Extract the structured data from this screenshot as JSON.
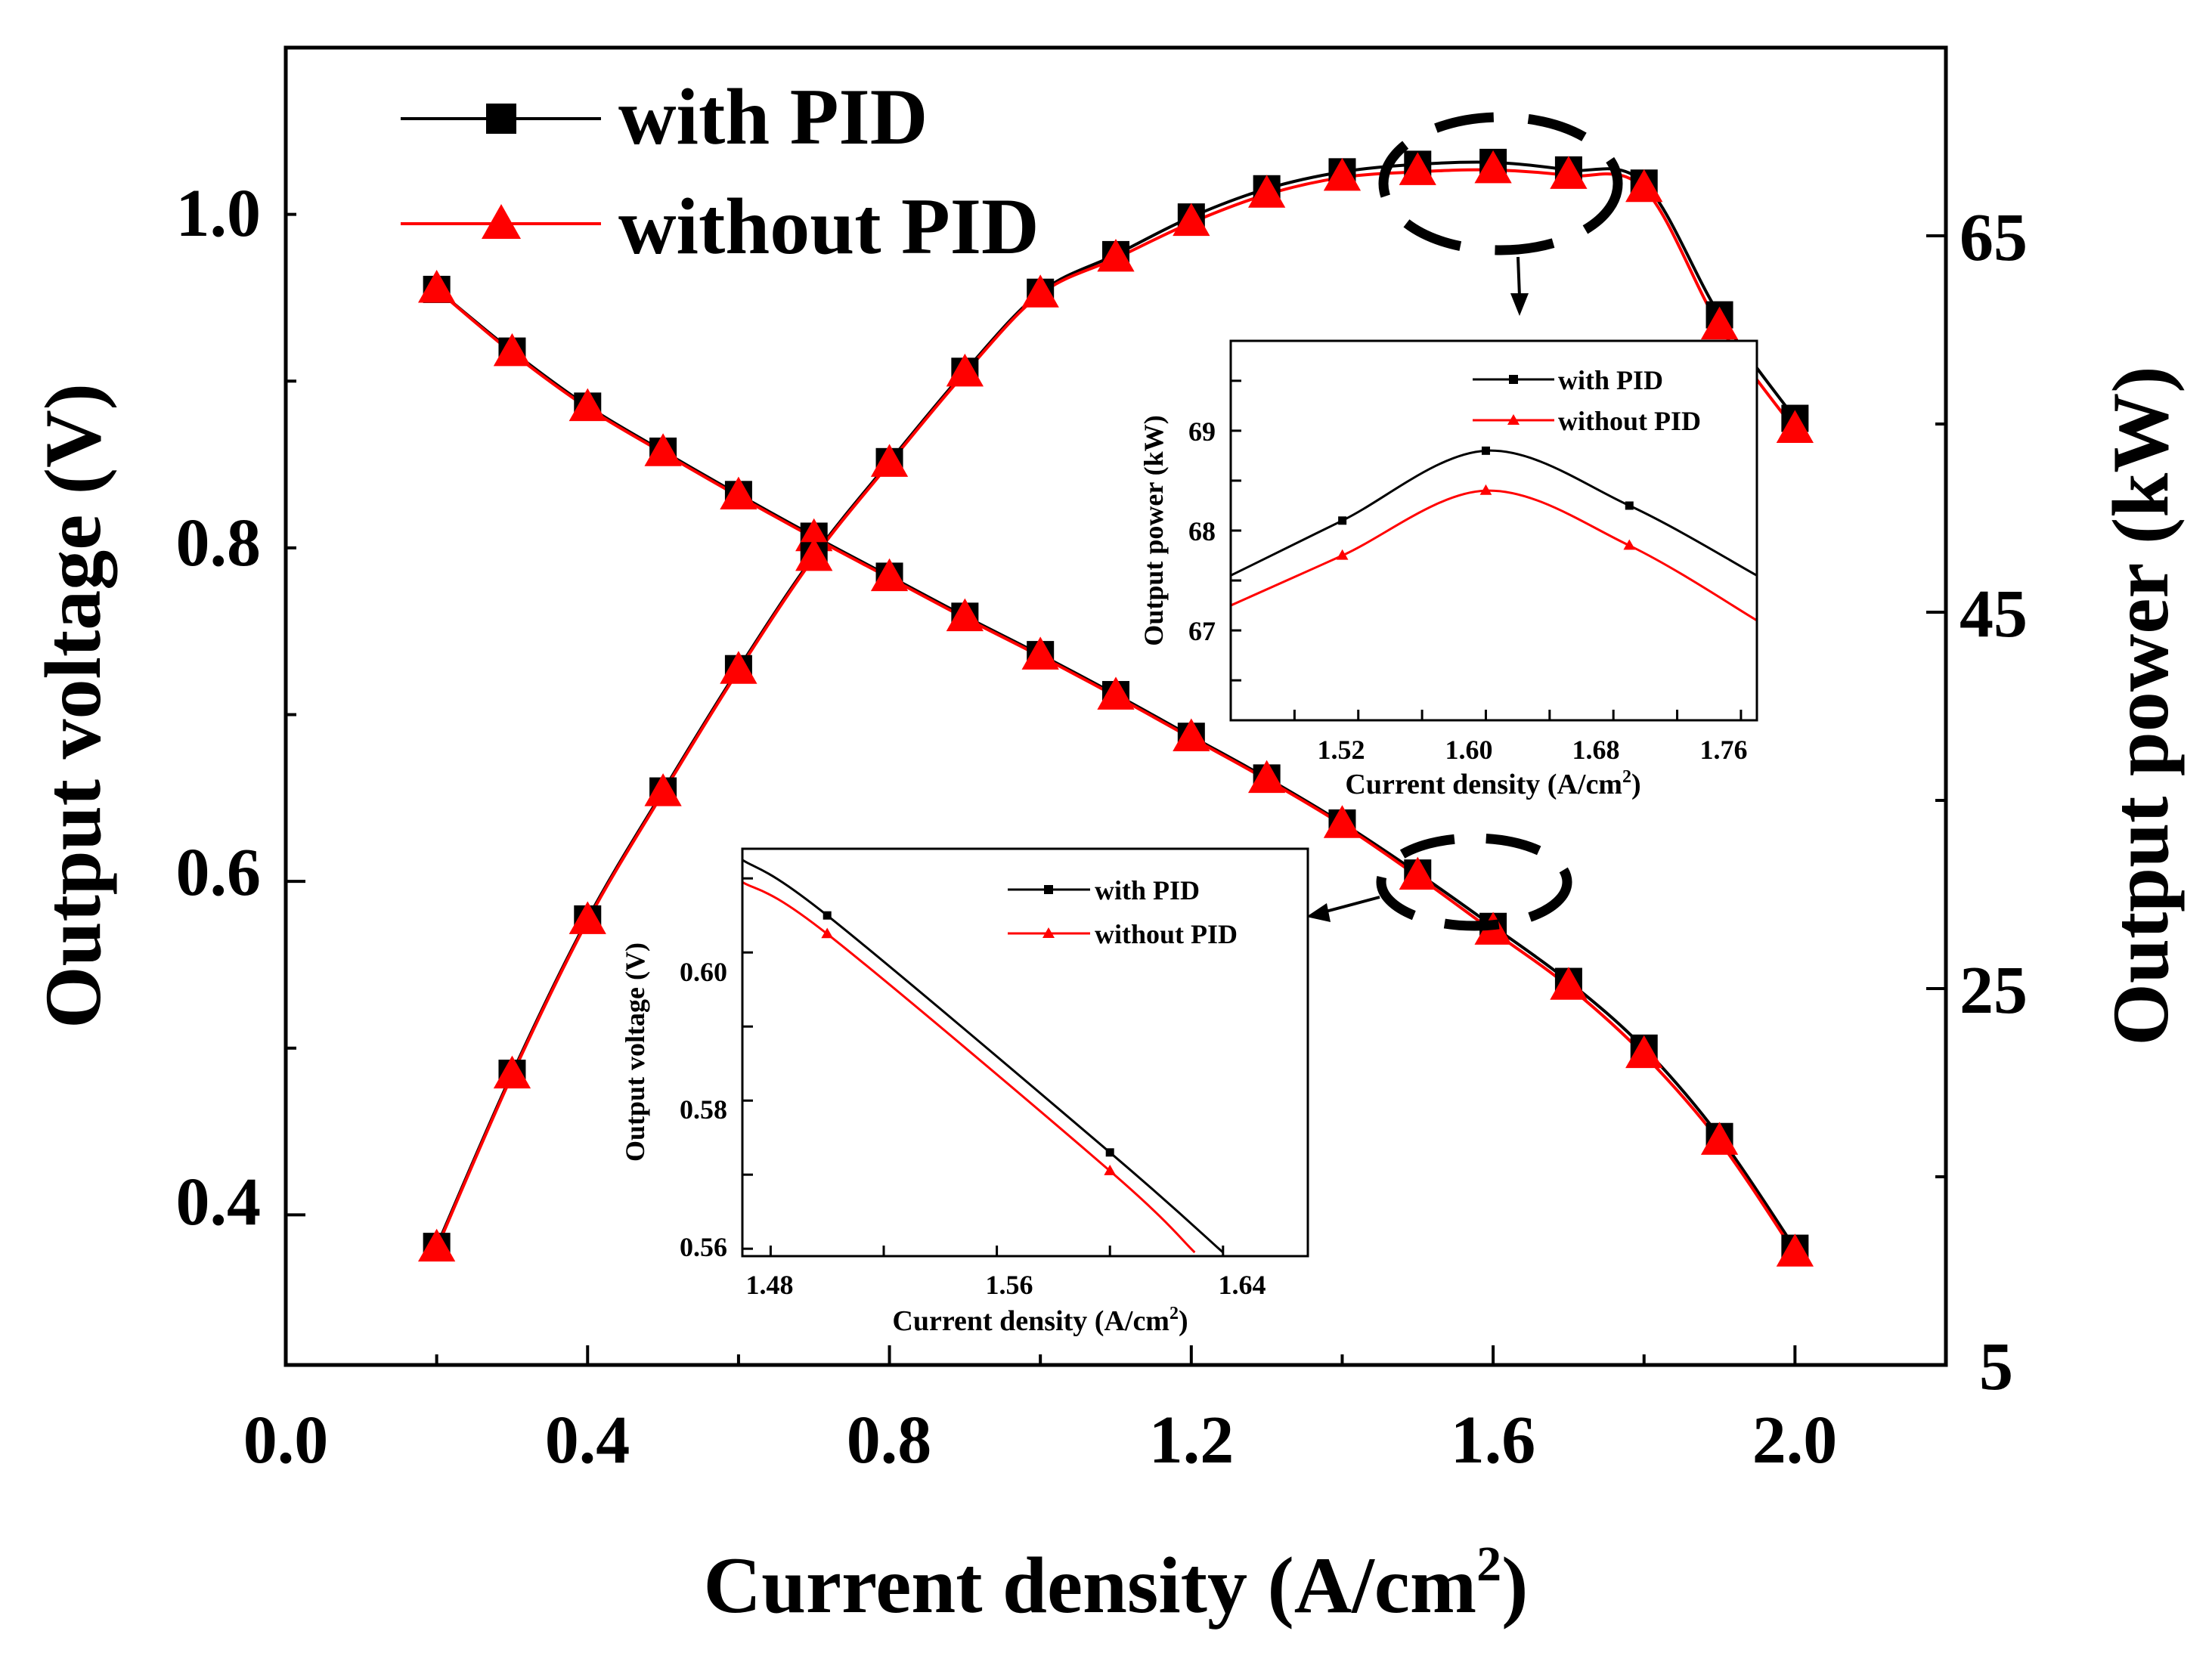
{
  "chart_data": [
    {
      "id": "main",
      "type": "line",
      "xlabel": "Current density (A/cm",
      "xlabel_sup": "2",
      "xlabel_end": ")",
      "ylabel_left": "Output voltage (V)",
      "ylabel_right": "Output power (kW)",
      "xlim": [
        0.0,
        2.2
      ],
      "ylim_left": [
        0.31,
        1.1
      ],
      "ylim_right": [
        5,
        75
      ],
      "xticks": [
        "0.0",
        "0.4",
        "0.8",
        "1.2",
        "1.6",
        "2.0"
      ],
      "yticks_left": [
        "0.4",
        "0.6",
        "0.8",
        "1.0"
      ],
      "yticks_right": [
        "5",
        "25",
        "45",
        "65"
      ],
      "legend": [
        {
          "name": "with PID",
          "color": "#000000",
          "marker": "square"
        },
        {
          "name": "without PID",
          "color": "#ff0000",
          "marker": "triangle"
        }
      ],
      "x": [
        0.2,
        0.3,
        0.4,
        0.5,
        0.6,
        0.7,
        0.8,
        0.9,
        1.0,
        1.1,
        1.2,
        1.3,
        1.4,
        1.5,
        1.6,
        1.7,
        1.8,
        1.9,
        2.0
      ],
      "series": [
        {
          "name": "with PID voltage",
          "axis": "left",
          "color": "#000000",
          "marker": "square",
          "values": [
            0.955,
            0.918,
            0.885,
            0.858,
            0.832,
            0.807,
            0.783,
            0.759,
            0.736,
            0.712,
            0.687,
            0.662,
            0.635,
            0.605,
            0.573,
            0.54,
            0.5,
            0.447,
            0.38
          ]
        },
        {
          "name": "without PID voltage",
          "axis": "left",
          "color": "#ff0000",
          "marker": "triangle",
          "values": [
            0.955,
            0.917,
            0.884,
            0.857,
            0.831,
            0.806,
            0.782,
            0.758,
            0.735,
            0.711,
            0.686,
            0.661,
            0.634,
            0.603,
            0.57,
            0.537,
            0.496,
            0.444,
            0.377
          ]
        },
        {
          "name": "with PID power",
          "axis": "right",
          "color": "#000000",
          "marker": "square",
          "values": [
            11.3,
            20.5,
            28.7,
            35.5,
            42.0,
            48.0,
            53.0,
            57.8,
            62.0,
            64.0,
            66.0,
            67.5,
            68.4,
            68.8,
            68.9,
            68.5,
            67.8,
            60.8,
            55.3
          ]
        },
        {
          "name": "without PID power",
          "axis": "right",
          "color": "#ff0000",
          "marker": "triangle",
          "values": [
            11.2,
            20.4,
            28.6,
            35.4,
            41.9,
            47.9,
            52.9,
            57.7,
            61.9,
            63.8,
            65.7,
            67.2,
            68.1,
            68.4,
            68.5,
            68.2,
            67.5,
            60.2,
            54.7
          ]
        }
      ]
    },
    {
      "id": "inset_power",
      "type": "line",
      "xlabel": "Current density (A/cm",
      "xlabel_sup": "2",
      "xlabel_end": ")",
      "ylabel": "Output power (kW)",
      "xlim": [
        1.44,
        1.77
      ],
      "ylim": [
        66.1,
        69.9
      ],
      "xticks": [
        "1.52",
        "1.60",
        "1.68",
        "1.76"
      ],
      "yticks": [
        "67",
        "68",
        "69"
      ],
      "legend": [
        {
          "name": "with PID",
          "color": "#000000",
          "marker": "square"
        },
        {
          "name": "without PID",
          "color": "#ff0000",
          "marker": "triangle"
        }
      ],
      "series": [
        {
          "name": "with PID",
          "color": "#000000",
          "marker": "square",
          "x": [
            1.44,
            1.51,
            1.6,
            1.69,
            1.77
          ],
          "values": [
            67.55,
            68.1,
            68.8,
            68.25,
            67.55
          ],
          "marker_x": [
            1.51,
            1.6,
            1.69
          ]
        },
        {
          "name": "without PID",
          "color": "#ff0000",
          "marker": "triangle",
          "x": [
            1.44,
            1.51,
            1.6,
            1.69,
            1.77
          ],
          "values": [
            67.25,
            67.75,
            68.4,
            67.85,
            67.1
          ],
          "marker_x": [
            1.51,
            1.6,
            1.69
          ]
        }
      ]
    },
    {
      "id": "inset_voltage",
      "type": "line",
      "xlabel": "Current density (A/cm",
      "xlabel_sup": "2",
      "xlabel_end": ")",
      "ylabel": "Output voltage (V)",
      "xlim": [
        1.47,
        1.67
      ],
      "ylim": [
        0.559,
        0.614
      ],
      "xticks": [
        "1.48",
        "1.56",
        "1.64"
      ],
      "yticks": [
        "0.56",
        "0.58",
        "0.60"
      ],
      "legend": [
        {
          "name": "with PID",
          "color": "#000000",
          "marker": "square"
        },
        {
          "name": "without PID",
          "color": "#ff0000",
          "marker": "triangle"
        }
      ],
      "series": [
        {
          "name": "with PID",
          "color": "#000000",
          "marker": "square",
          "x": [
            1.47,
            1.5,
            1.6,
            1.64
          ],
          "values": [
            0.6125,
            0.605,
            0.573,
            0.5595
          ],
          "marker_x": [
            1.5,
            1.6
          ]
        },
        {
          "name": "without PID",
          "color": "#ff0000",
          "marker": "triangle",
          "x": [
            1.47,
            1.5,
            1.6,
            1.63
          ],
          "values": [
            0.6095,
            0.6025,
            0.5705,
            0.5595
          ],
          "marker_x": [
            1.5,
            1.6
          ]
        }
      ]
    }
  ]
}
